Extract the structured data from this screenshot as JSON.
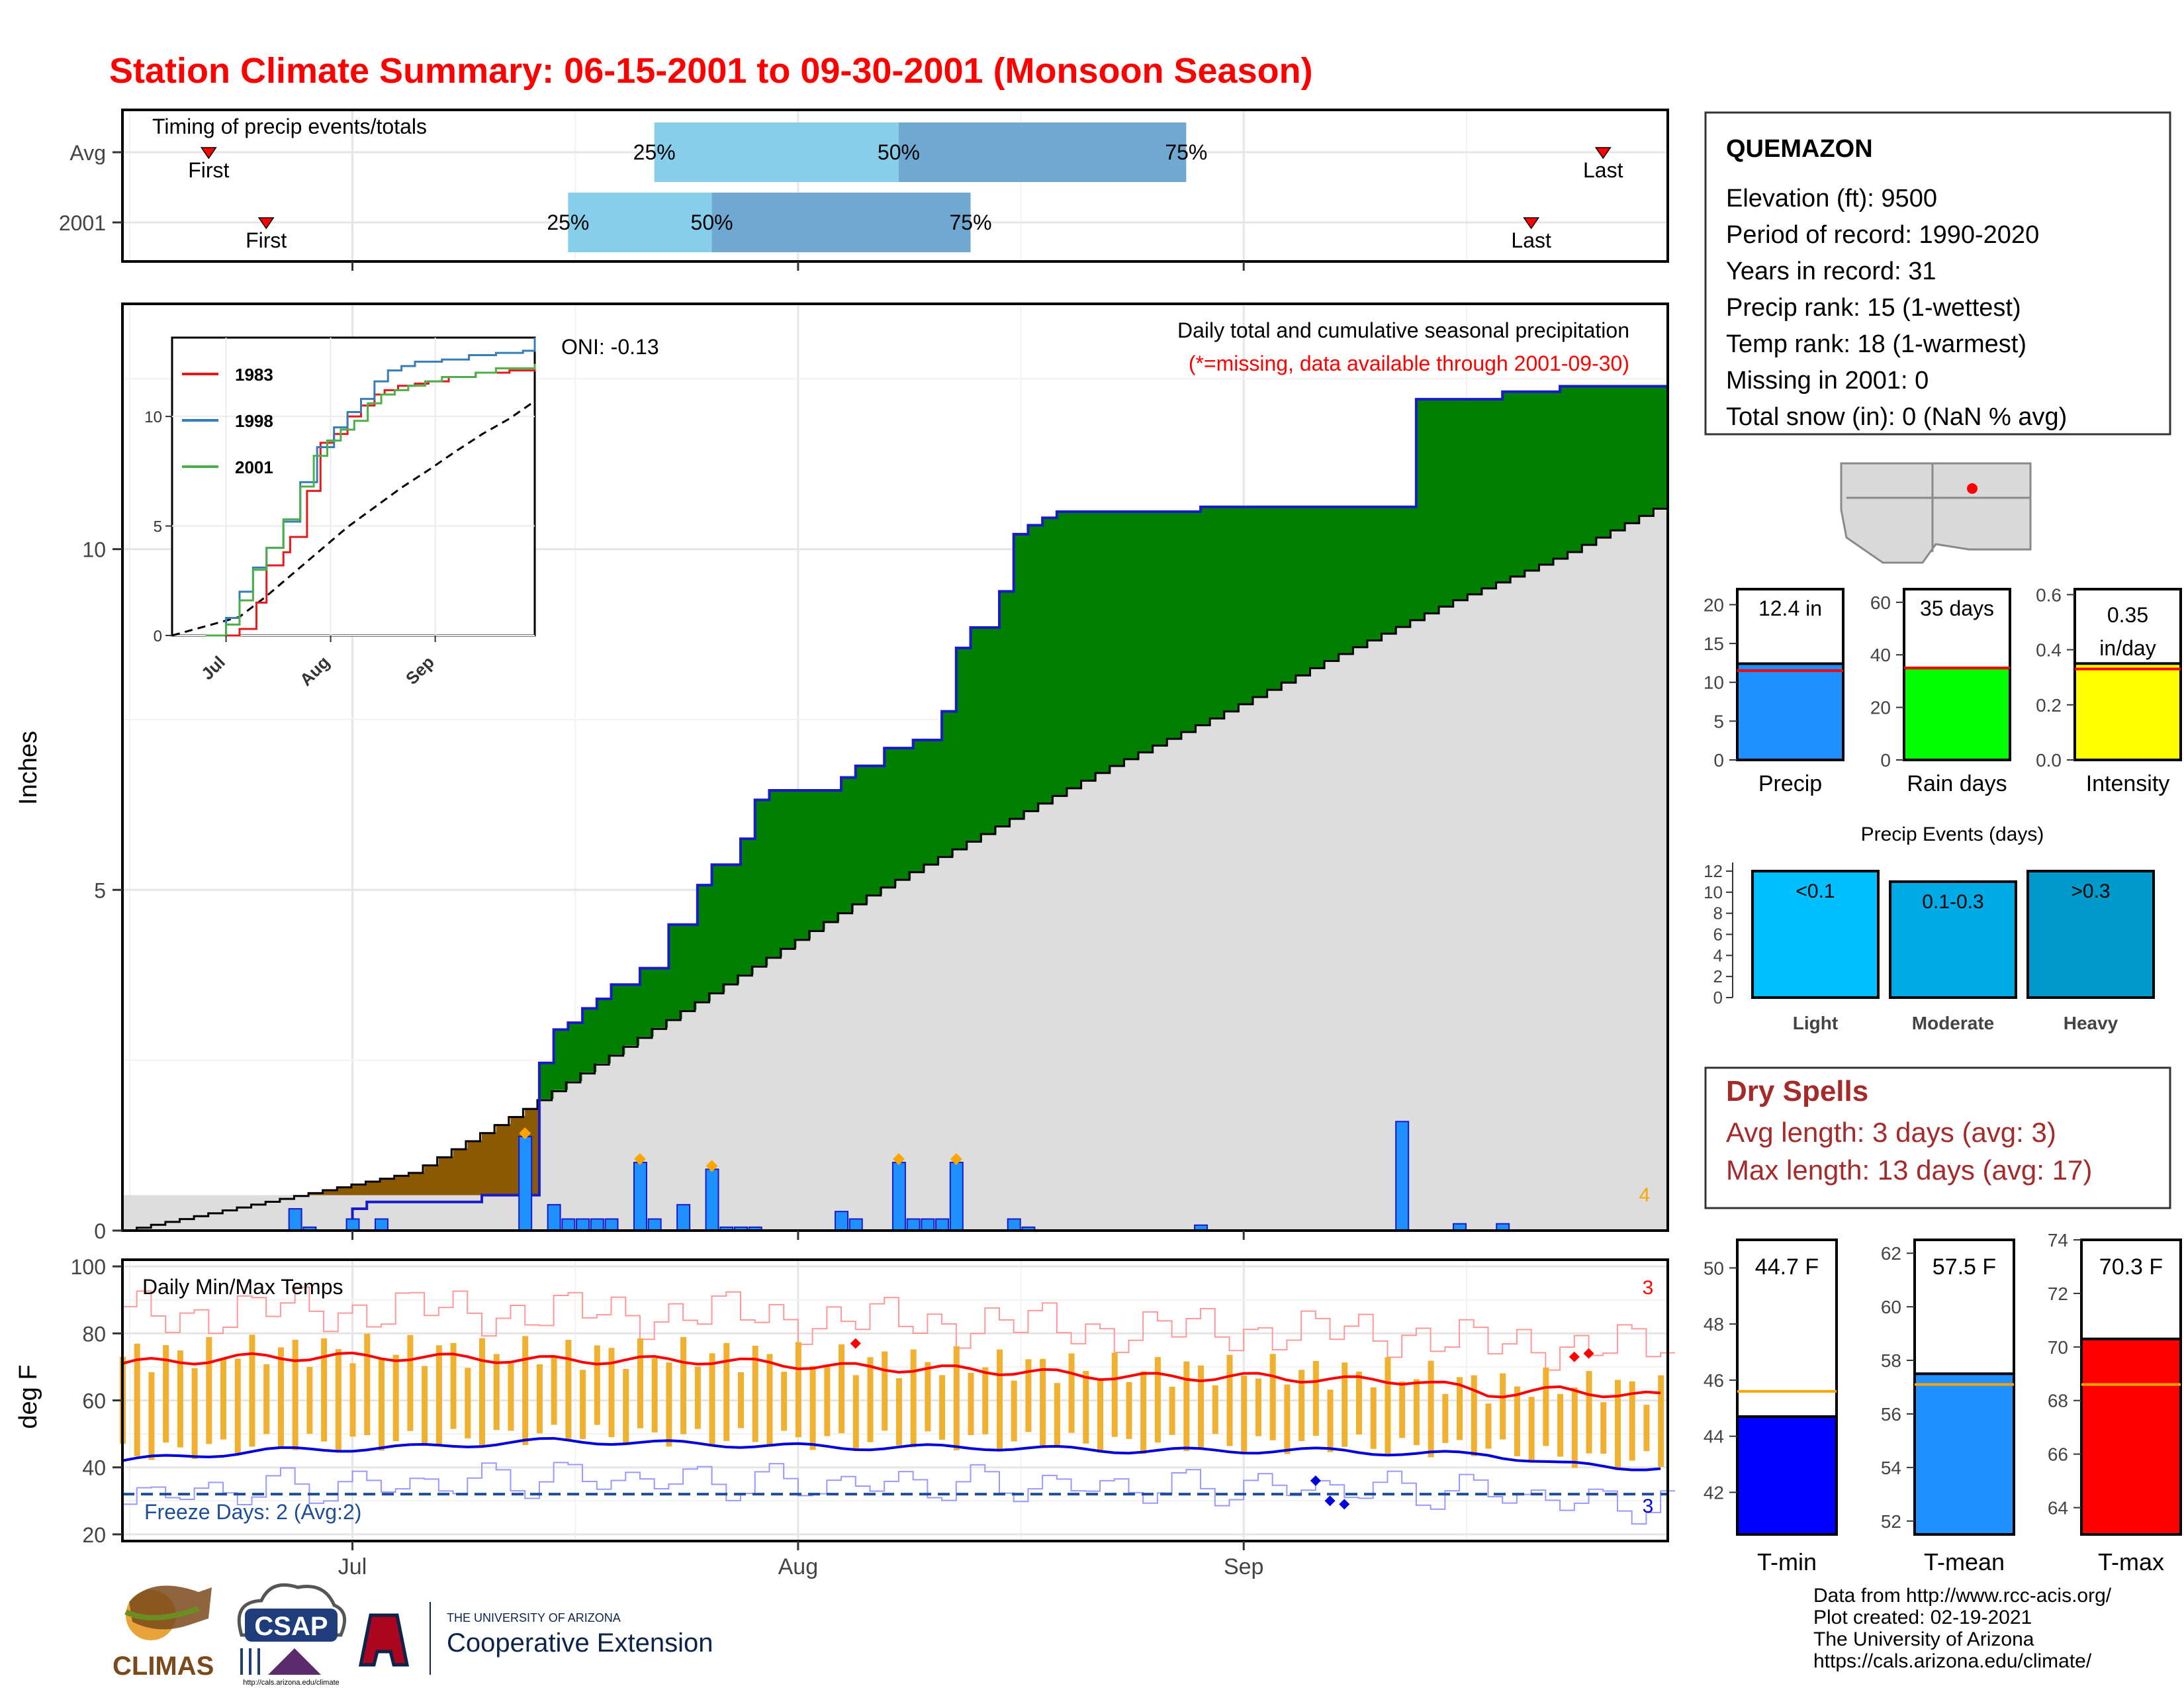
{
  "title": "Station Climate Summary: 06-15-2001 to 09-30-2001 (Monsoon Season)",
  "colors": {
    "title": "#ff0000",
    "precip_bar": "#1e90ff",
    "above_avg_fill": "#008000",
    "below_avg_fill": "#8b5a00",
    "climatology_fill": "#dddddd",
    "tmax": "#ff0000",
    "tmin": "#0000dd",
    "daily_range": "#f0b030",
    "freeze_line": "#1f4e99",
    "dry_spells": "#a52a2a",
    "light": "#00bfff",
    "moderate": "#00aae4",
    "heavy": "#0099cc"
  },
  "timing_panel": {
    "title": "Timing of precip events/totals",
    "rows": [
      {
        "label": "Avg",
        "first": "First",
        "last": "Last",
        "q25": "25%",
        "q50": "50%",
        "q75": "75%",
        "first_day": 6,
        "last_day": 103,
        "q25_day": 37,
        "q50_day": 54,
        "q75_day": 74
      },
      {
        "label": "2001",
        "first": "First",
        "last": "Last",
        "q25": "25%",
        "q50": "50%",
        "q75": "75%",
        "first_day": 10,
        "last_day": 98,
        "q25_day": 31,
        "q50_day": 41,
        "q75_day": 59
      }
    ]
  },
  "station": {
    "name": "QUEMAZON",
    "lines": [
      "Elevation (ft): 9500",
      "Period of record: 1990-2020",
      "Years in record: 31",
      "Precip rank: 15 (1-wettest)",
      "Temp rank: 18 (1-warmest)",
      "Missing in 2001: 0",
      "Total snow (in): 0 (NaN % avg)"
    ]
  },
  "main_panel": {
    "annotation_title": "Daily total and cumulative seasonal precipitation",
    "annotation_missing": "(*=missing, data available through 2001-09-30)",
    "oni": "ONI: -0.13",
    "ylabel": "Inches",
    "corner_count": "4"
  },
  "inset": {
    "legend": [
      "1983",
      "1998",
      "2001"
    ],
    "colors": [
      "#e41a1c",
      "#377eb8",
      "#4daf4a"
    ],
    "months": [
      "Jul",
      "Aug",
      "Sep"
    ],
    "yticks": [
      "0",
      "5",
      "10"
    ]
  },
  "temp_panel": {
    "title": "Daily Min/Max Temps",
    "ylabel": "deg F",
    "freeze_text": "Freeze Days: 2 (Avg:2)",
    "top_count": "3",
    "bottom_count": "3"
  },
  "x_months": [
    "Jul",
    "Aug",
    "Sep"
  ],
  "summary_bars": [
    {
      "name": "Precip",
      "value_label": "12.4 in",
      "yticks": [
        "0",
        "5",
        "10",
        "15",
        "20"
      ],
      "ymax": 22,
      "value": 12.4,
      "avg": 11.5,
      "color": "#1e90ff"
    },
    {
      "name": "Rain days",
      "value_label": "35 days",
      "yticks": [
        "0",
        "20",
        "40",
        "60"
      ],
      "ymax": 65,
      "value": 35,
      "avg": 35,
      "color": "#00ff00"
    },
    {
      "name": "Intensity",
      "value_label": "0.35 in/day",
      "yticks": [
        "0.0",
        "0.2",
        "0.4",
        "0.6"
      ],
      "ymax": 0.62,
      "value": 0.35,
      "avg": 0.33,
      "color": "#ffff00"
    }
  ],
  "precip_events": {
    "title": "Precip Events (days)",
    "yticks": [
      "0",
      "2",
      "4",
      "6",
      "8",
      "10",
      "12"
    ],
    "ymax": 12.5,
    "bars": [
      {
        "category": "Light",
        "label": "<0.1",
        "value": 12
      },
      {
        "category": "Moderate",
        "label": "0.1-0.3",
        "value": 11
      },
      {
        "category": "Heavy",
        "label": ">0.3",
        "value": 12
      }
    ]
  },
  "dry_spells": {
    "title": "Dry Spells",
    "avg_line": "Avg length: 3 days (avg: 3)",
    "max_line": "Max length: 13 days (avg: 17)"
  },
  "temp_bars": [
    {
      "name": "T-min",
      "value_label": "44.7 F",
      "yticks": [
        "42",
        "44",
        "46",
        "48",
        "50"
      ],
      "ymin": 40.5,
      "ymax": 51,
      "value": 44.7,
      "avg": 45.6,
      "color": "#0000ff"
    },
    {
      "name": "T-mean",
      "value_label": "57.5 F",
      "yticks": [
        "52",
        "54",
        "56",
        "58",
        "60",
        "62"
      ],
      "ymin": 51.5,
      "ymax": 62.5,
      "value": 57.5,
      "avg": 57.1,
      "color": "#1e90ff"
    },
    {
      "name": "T-max",
      "value_label": "70.3 F",
      "yticks": [
        "64",
        "66",
        "68",
        "70",
        "72",
        "74"
      ],
      "ymin": 63,
      "ymax": 74,
      "value": 70.3,
      "avg": 68.6,
      "color": "#ff0000"
    }
  ],
  "logos": {
    "climas": "CLIMAS",
    "csap": "CSAP",
    "csap_url": "http://cals.arizona.edu/climate",
    "ua_small": "THE UNIVERSITY OF ARIZONA",
    "ua_large": "Cooperative Extension"
  },
  "footer": [
    "Data from http://www.rcc-acis.org/",
    "Plot created: 02-19-2021",
    "The University of Arizona",
    "https://cals.arizona.edu/climate/"
  ],
  "chart_data": [
    {
      "type": "area",
      "title": "Daily total and cumulative seasonal precipitation",
      "ylabel": "Inches",
      "ylim": [
        0,
        13.6
      ],
      "xlim_days": [
        0,
        108
      ],
      "x_start": "2001-06-15",
      "series": [
        {
          "name": "cumulative",
          "x": [
            0,
            12,
            16,
            17,
            18,
            19,
            25,
            26,
            27,
            28,
            29,
            30,
            31,
            32,
            33,
            36,
            37,
            38,
            39,
            40,
            41,
            42,
            43,
            44,
            45,
            46,
            48,
            50,
            54,
            55,
            56,
            58,
            59,
            60,
            61,
            62,
            63,
            64,
            66,
            70,
            72,
            78,
            87,
            92,
            95,
            99,
            106
          ],
          "values": [
            0,
            0,
            0.32,
            0.42,
            0.42,
            0.42,
            0.42,
            0.52,
            0.52,
            0.52,
            0.52,
            0.52,
            0.52,
            0.52,
            0.52,
            0.52,
            0.52,
            0.52,
            0.52,
            0.52,
            0.52,
            0.52,
            0.52,
            0.52,
            0.52,
            0.52,
            0.52,
            0.52,
            0.52,
            0.52,
            0.52,
            0.52,
            0.52,
            0.52,
            0.52,
            0.52,
            0.52,
            0.52,
            0.52,
            0.52,
            0.52,
            0.52,
            0.52,
            0.52,
            0.52,
            0.52,
            0.52
          ]
        },
        {
          "name": "cumulative 2001",
          "x": [
            0,
            12,
            16,
            17,
            18,
            19,
            25,
            28,
            29,
            30,
            31,
            32,
            33,
            34,
            36,
            38,
            40,
            41,
            42,
            43,
            44,
            45,
            50,
            51,
            52,
            53,
            55,
            57,
            58,
            59,
            60,
            61,
            62,
            63,
            64,
            65,
            66,
            69,
            75,
            90,
            96,
            100,
            104,
            107.5
          ],
          "values": [
            0,
            0,
            0.32,
            0.42,
            0.42,
            0.42,
            0.52,
            0.52,
            2.46,
            2.95,
            3.05,
            3.26,
            3.4,
            3.61,
            3.85,
            4.49,
            5.07,
            5.37,
            5.37,
            5.75,
            6.32,
            6.46,
            6.65,
            6.82,
            6.82,
            7.08,
            7.2,
            7.62,
            8.55,
            8.85,
            8.85,
            9.38,
            10.22,
            10.35,
            10.46,
            10.55,
            10.55,
            10.55,
            10.62,
            12.2,
            12.31,
            12.39,
            12.39,
            12.39
          ]
        },
        {
          "name": "climatology",
          "x": [
            0,
            20,
            28,
            36,
            44,
            52,
            60,
            68,
            76,
            84,
            92,
            100,
            107.5
          ],
          "values": [
            0,
            0.85,
            1.8,
            2.85,
            3.9,
            4.95,
            5.85,
            6.75,
            7.55,
            8.4,
            9.2,
            9.9,
            10.7
          ]
        }
      ],
      "daily_precip": {
        "x": [
          12,
          13,
          16,
          18,
          28,
          30,
          31,
          32,
          33,
          34,
          36,
          37,
          39,
          41,
          42,
          43,
          44,
          50,
          51,
          54,
          55,
          56,
          57,
          58,
          62,
          63,
          75,
          89,
          93,
          96
        ],
        "values": [
          0.32,
          0.05,
          0.17,
          0.17,
          1.38,
          0.38,
          0.17,
          0.17,
          0.17,
          0.17,
          1.0,
          0.17,
          0.38,
          0.9,
          0.05,
          0.05,
          0.05,
          0.28,
          0.17,
          1.0,
          0.17,
          0.17,
          0.17,
          1.0,
          0.17,
          0.05,
          0.08,
          1.6,
          0.1,
          0.1
        ]
      }
    },
    {
      "type": "line",
      "title": "Daily Min/Max Temps",
      "ylabel": "deg F",
      "ylim": [
        18,
        102
      ],
      "xlim_days": [
        0,
        108
      ],
      "series": [
        {
          "name": "T-max 2001",
          "x": [
            0,
            10,
            20,
            30,
            40,
            50,
            60,
            70,
            80,
            85,
            90,
            95,
            100,
            104,
            107.5
          ],
          "values": [
            71,
            73,
            73,
            72,
            72,
            70,
            69,
            67,
            67,
            66,
            66,
            62,
            63,
            62,
            61
          ]
        },
        {
          "name": "T-min 2001",
          "x": [
            0,
            10,
            20,
            30,
            40,
            50,
            60,
            70,
            80,
            85,
            90,
            95,
            100,
            104,
            107.5
          ],
          "values": [
            42,
            45,
            46,
            48,
            47,
            46,
            46,
            45,
            45,
            45,
            44,
            44,
            41,
            40,
            40
          ]
        }
      ],
      "freeze_threshold": 32
    },
    {
      "type": "bar",
      "categories": [
        "Precip",
        "Rain days",
        "Intensity"
      ],
      "values": [
        12.4,
        35,
        0.35
      ]
    },
    {
      "type": "bar",
      "title": "Precip Events (days)",
      "categories": [
        "Light",
        "Moderate",
        "Heavy"
      ],
      "values": [
        12,
        11,
        12
      ]
    },
    {
      "type": "bar",
      "categories": [
        "T-min",
        "T-mean",
        "T-max"
      ],
      "values": [
        44.7,
        57.5,
        70.3
      ]
    }
  ]
}
